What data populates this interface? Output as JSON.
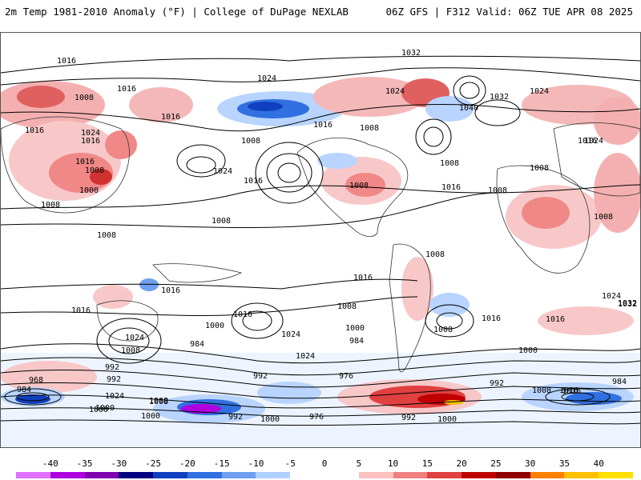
{
  "header": {
    "left_title": "2m Temp 1981-2010 Anomaly (°F) | College of DuPage NEXLAB",
    "right_title": "06Z GFS | F312 Valid: 06Z TUE APR 08 2025"
  },
  "colorbar": {
    "ticks": [
      "-40",
      "-35",
      "-30",
      "-25",
      "-20",
      "-15",
      "-10",
      "-5",
      "0",
      "5",
      "10",
      "15",
      "20",
      "25",
      "30",
      "35",
      "40"
    ],
    "colors": [
      "#e070ff",
      "#b000e0",
      "#8000b0",
      "#000080",
      "#1040c0",
      "#3070e0",
      "#6fa0f0",
      "#b0d0ff",
      "#ffffff",
      "#ffffff",
      "#ffc0c0",
      "#f08080",
      "#e04040",
      "#c00000",
      "#900000",
      "#ff8000",
      "#ffc000",
      "#ffe000"
    ]
  },
  "contours": {
    "line_color": "#000000",
    "labels": [
      "1016",
      "1032",
      "1024",
      "1008",
      "1016",
      "1024",
      "1040",
      "1032",
      "1008",
      "1024",
      "1016",
      "1008",
      "1016",
      "1016",
      "1016",
      "1008",
      "1024",
      "1008",
      "1016",
      "1024",
      "1016",
      "1016",
      "1008",
      "1008",
      "1016",
      "1000",
      "1008",
      "1024",
      "1008",
      "1008",
      "1008",
      "1016",
      "1008",
      "1016",
      "1016",
      "1016",
      "1008",
      "1024",
      "1032",
      "1016",
      "1016",
      "1008",
      "1000",
      "1024",
      "1008",
      "1000",
      "1000",
      "984",
      "1024",
      "992",
      "992",
      "1000",
      "968",
      "984",
      "1024",
      "1008",
      "1000",
      "1008",
      "984",
      "992",
      "1000",
      "976",
      "992",
      "1024",
      "984",
      "1008",
      "1016",
      "992",
      "976",
      "1000",
      "992",
      "1000",
      "1008",
      "1016",
      "1032"
    ]
  },
  "legend_title": ""
}
